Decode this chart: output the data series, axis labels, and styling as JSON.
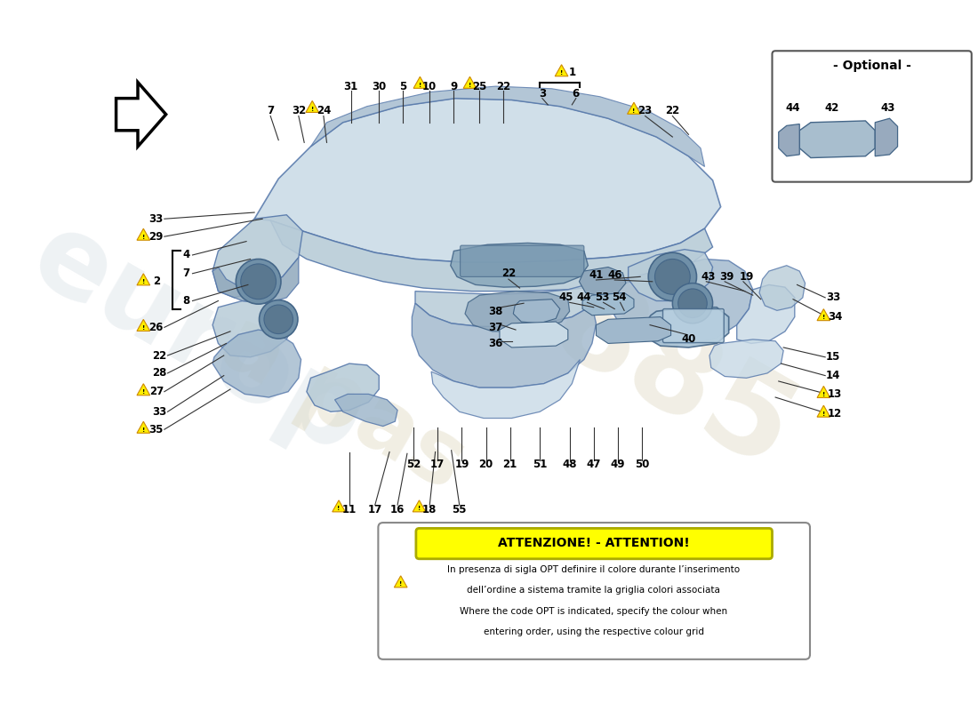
{
  "bg_color": "#ffffff",
  "warn_color": "#ffee00",
  "warn_border": "#cc8800",
  "attention_title": "ATTENZIONE! - ATTENTION!",
  "attention_line1": "In presenza di sigla OPT definire il colore durante l’inserimento",
  "attention_line2": "dell’ordine a sistema tramite la griglia colori associata",
  "attention_line3": "Where the code OPT is indicated, specify the colour when",
  "attention_line4": "entering order, using the respective colour grid",
  "optional_label": "- Optional -",
  "p1": "#b8ccd8",
  "p2": "#a0b8cc",
  "p3": "#c8dae6",
  "p4": "#90a8bc",
  "pe": "#5577aa",
  "pe2": "#446688"
}
